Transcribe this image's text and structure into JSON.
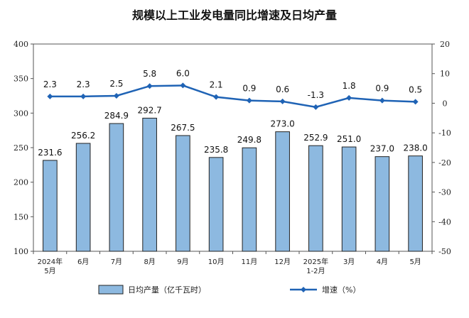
{
  "chart_data": {
    "type": "bar",
    "title": "规模以上工业发电量同比增速及日均产量",
    "categories": [
      "2024年\n5月",
      "6月",
      "7月",
      "8月",
      "9月",
      "10月",
      "11月",
      "12月",
      "2025年\n1-2月",
      "3月",
      "4月",
      "5月"
    ],
    "series": [
      {
        "name": "日均产量（亿千瓦时）",
        "type": "bar",
        "axis": "left",
        "values": [
          231.6,
          256.2,
          284.9,
          292.7,
          267.5,
          235.8,
          249.8,
          273.0,
          252.9,
          251.0,
          237.0,
          238.0
        ],
        "labels": [
          "231.6",
          "256.2",
          "284.9",
          "292.7",
          "267.5",
          "235.8",
          "249.8",
          "273.0",
          "252.9",
          "251.0",
          "237.0",
          "238.0"
        ],
        "color": "#8DB9E0"
      },
      {
        "name": "增速（%）",
        "type": "line",
        "axis": "right",
        "values": [
          2.3,
          2.3,
          2.5,
          5.8,
          6.0,
          2.1,
          0.9,
          0.6,
          -1.3,
          1.8,
          0.9,
          0.5
        ],
        "labels": [
          "2.3",
          "2.3",
          "2.5",
          "5.8",
          "6.0",
          "2.1",
          "0.9",
          "0.6",
          "-1.3",
          "1.8",
          "0.9",
          "0.5"
        ],
        "color": "#1F63B5"
      }
    ],
    "y_left": {
      "min": 100,
      "max": 400,
      "ticks": [
        "100",
        "150",
        "200",
        "250",
        "300",
        "350",
        "400"
      ]
    },
    "y_right": {
      "min": -50,
      "max": 20,
      "ticks": [
        "-50",
        "-40",
        "-30",
        "-20",
        "-10",
        "0",
        "10",
        "20"
      ]
    },
    "grid": false,
    "legend_position": "bottom"
  }
}
